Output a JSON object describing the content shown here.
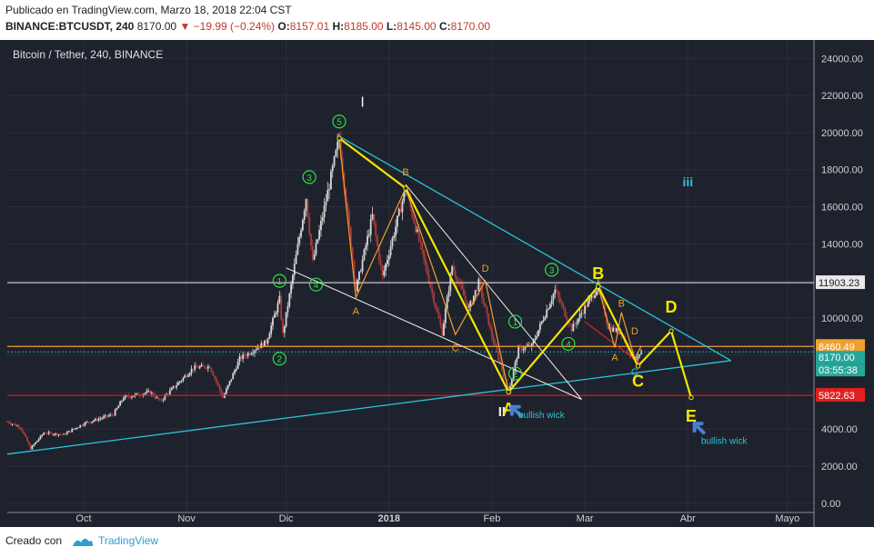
{
  "header": {
    "published": "Publicado en TradingView.com, Marzo 18, 2018 22:04 CST",
    "symbol": "BINANCE:BTCUSDT, 240",
    "last": "8170.00",
    "change": "▼ −19.99 (−0.24%)",
    "ohlc": {
      "o_label": "O:",
      "o": "8157.01",
      "h_label": "H:",
      "h": "8185.00",
      "l_label": "L:",
      "l": "8145.00",
      "c_label": "C:",
      "c": "8170.00"
    }
  },
  "footer": {
    "created": "Creado con",
    "brand": "TradingView"
  },
  "colors": {
    "background": "#1e222d",
    "candle_up": "#d7d7d7",
    "candle_down": "#b03a3a",
    "yellow": "#f2e600",
    "cyan": "#2bc4d6",
    "orange": "#f0a030",
    "green": "#33dd44",
    "red_line": "#e02020",
    "white": "#f0f0f0"
  },
  "chart_data": {
    "type": "candlestick",
    "title": "Bitcoin / Tether, 240, BINANCE",
    "ylim": [
      -500,
      25000
    ],
    "y_ticks": [
      "24000.00",
      "22000.00",
      "20000.00",
      "18000.00",
      "16000.00",
      "14000.00",
      "12000.00",
      "10000.00",
      "8000.00",
      "6000.00",
      "4000.00",
      "2000.00",
      "0.00"
    ],
    "y_tick_values": [
      24000,
      22000,
      20000,
      18000,
      16000,
      14000,
      12000,
      10000,
      8000,
      6000,
      4000,
      2000,
      0
    ],
    "x_range": [
      "2017-09-08",
      "2018-05-09"
    ],
    "x_ticks": [
      {
        "label": "Oct",
        "date": "2017-10-01"
      },
      {
        "label": "Nov",
        "date": "2017-11-01"
      },
      {
        "label": "Dic",
        "date": "2017-12-01"
      },
      {
        "label": "2018",
        "date": "2018-01-01"
      },
      {
        "label": "Feb",
        "date": "2018-02-01"
      },
      {
        "label": "Mar",
        "date": "2018-03-01"
      },
      {
        "label": "Abr",
        "date": "2018-04-01"
      },
      {
        "label": "Mayo",
        "date": "2018-05-01"
      }
    ],
    "price_path": [
      [
        "2017-09-08",
        4400
      ],
      [
        "2017-09-12",
        4100
      ],
      [
        "2017-09-15",
        2950
      ],
      [
        "2017-09-19",
        3800
      ],
      [
        "2017-09-25",
        3700
      ],
      [
        "2017-10-01",
        4300
      ],
      [
        "2017-10-10",
        4800
      ],
      [
        "2017-10-13",
        5700
      ],
      [
        "2017-10-21",
        6000
      ],
      [
        "2017-10-24",
        5500
      ],
      [
        "2017-11-03",
        7300
      ],
      [
        "2017-11-08",
        7400
      ],
      [
        "2017-11-12",
        5700
      ],
      [
        "2017-11-17",
        7800
      ],
      [
        "2017-11-25",
        8700
      ],
      [
        "2017-11-29",
        11000
      ],
      [
        "2017-11-30",
        9100
      ],
      [
        "2017-12-07",
        16500
      ],
      [
        "2017-12-09",
        13000
      ],
      [
        "2017-12-17",
        19700
      ],
      [
        "2017-12-22",
        11500
      ],
      [
        "2017-12-27",
        15500
      ],
      [
        "2017-12-30",
        12200
      ],
      [
        "2018-01-06",
        17000
      ],
      [
        "2018-01-09",
        14900
      ],
      [
        "2018-01-17",
        9200
      ],
      [
        "2018-01-20",
        12800
      ],
      [
        "2018-01-25",
        10500
      ],
      [
        "2018-01-28",
        11900
      ],
      [
        "2018-02-01",
        9000
      ],
      [
        "2018-02-06",
        6000
      ],
      [
        "2018-02-09",
        8300
      ],
      [
        "2018-02-13",
        8500
      ],
      [
        "2018-02-20",
        11500
      ],
      [
        "2018-02-25",
        9400
      ],
      [
        "2018-03-05",
        11700
      ],
      [
        "2018-03-08",
        9500
      ],
      [
        "2018-03-12",
        9200
      ],
      [
        "2018-03-15",
        7900
      ],
      [
        "2018-03-17",
        7800
      ],
      [
        "2018-03-18",
        8170
      ]
    ],
    "levels": [
      {
        "name": "resistance",
        "value": 11903.23,
        "label": "11903.23",
        "color": "#f0f0f0"
      },
      {
        "name": "orange-level",
        "value": 8460.49,
        "label": "8460.49",
        "color": "#f0a030"
      },
      {
        "name": "current-price",
        "value": 8170.0,
        "label": "8170.00",
        "countdown": "03:55:38",
        "color": "#26a69a"
      },
      {
        "name": "support",
        "value": 5822.63,
        "label": "5822.63",
        "color": "#e02020"
      }
    ],
    "labels": {
      "roman_1": "I",
      "roman_2": "II",
      "roman_3": "iii",
      "big_a": "A",
      "big_b": "B",
      "big_c": "C",
      "big_d": "D",
      "big_e": "E",
      "small_a1": "A",
      "small_b1": "B",
      "small_c1": "C",
      "small_d1": "D",
      "small_a2": "A",
      "small_b2": "B",
      "small_c2": "C",
      "small_d2": "D",
      "wave1": "1",
      "wave2": "2",
      "wave3": "3",
      "wave4": "4",
      "wave5": "5",
      "wave1b": "1",
      "wave2b": "2",
      "wave3b": "3",
      "wave4b": "4",
      "bullish_wick_1": "bullish wick",
      "bullish_wick_2": "bullish wick"
    },
    "annotation_paths": {
      "yellow_main": [
        [
          "2017-12-17",
          19700
        ],
        [
          "2018-01-06",
          17000
        ],
        [
          "2018-02-06",
          6000
        ],
        [
          "2018-03-05",
          11700
        ],
        [
          "2018-03-17",
          7400
        ],
        [
          "2018-03-27",
          9300
        ],
        [
          "2018-04-02",
          5700
        ]
      ],
      "orange_abcd": [
        [
          "2017-12-17",
          19700
        ],
        [
          "2017-12-22",
          11100
        ],
        [
          "2018-01-06",
          17000
        ],
        [
          "2018-01-21",
          9100
        ],
        [
          "2018-01-30",
          12000
        ],
        [
          "2018-02-06",
          6000
        ]
      ],
      "orange_abcd2": [
        [
          "2018-03-05",
          11700
        ],
        [
          "2018-03-10",
          8400
        ],
        [
          "2018-03-12",
          10300
        ],
        [
          "2018-03-16",
          7800
        ],
        [
          "2018-03-18",
          8500
        ]
      ],
      "cyan_trendline": [
        [
          "2017-09-08",
          2650
        ],
        [
          "2018-04-14",
          7700
        ]
      ],
      "cyan_upper": [
        [
          "2017-12-17",
          19800
        ],
        [
          "2018-04-14",
          7700
        ]
      ],
      "white_channel_top": [
        [
          "2018-01-06",
          17200
        ],
        [
          "2018-02-28",
          5600
        ]
      ],
      "white_channel_bottom": [
        [
          "2017-12-01",
          12700
        ],
        [
          "2018-02-28",
          5600
        ]
      ],
      "red_segment": [
        [
          "2018-03-01",
          9800
        ],
        [
          "2018-03-18",
          7500
        ]
      ]
    }
  }
}
